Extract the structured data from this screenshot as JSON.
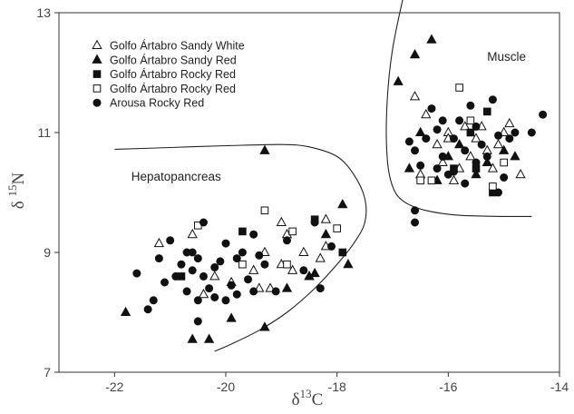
{
  "chart_data": {
    "type": "scatter",
    "title": "",
    "xlabel": "δ13C",
    "ylabel": "δ 15N",
    "xlim": [
      -23,
      -14
    ],
    "ylim": [
      7,
      13
    ],
    "xticks": [
      "-22",
      "-20",
      "-18",
      "-16",
      "-14"
    ],
    "yticks": [
      "7",
      "9",
      "11",
      "13"
    ],
    "grid": false,
    "legend_position": "top-left",
    "annotations": [
      {
        "text": "Hepatopancreas",
        "x": -21.7,
        "y": 10.2
      },
      {
        "text": "Muscle",
        "x": -15.3,
        "y": 12.2
      }
    ],
    "regions": [
      {
        "points": [
          [
            -22.0,
            10.72
          ],
          [
            -21.0,
            10.75
          ],
          [
            -20.0,
            10.78
          ],
          [
            -19.0,
            10.8
          ],
          [
            -18.5,
            10.76
          ],
          [
            -18.0,
            10.6
          ],
          [
            -17.7,
            10.3
          ],
          [
            -17.5,
            9.9
          ],
          [
            -17.5,
            9.5
          ],
          [
            -17.7,
            9.15
          ],
          [
            -18.0,
            8.8
          ],
          [
            -18.4,
            8.4
          ],
          [
            -18.9,
            8.0
          ],
          [
            -19.4,
            7.7
          ],
          [
            -19.9,
            7.47
          ],
          [
            -20.2,
            7.35
          ]
        ]
      },
      {
        "points": [
          [
            -16.8,
            13.3
          ],
          [
            -17.0,
            12.4
          ],
          [
            -17.1,
            11.5
          ],
          [
            -17.1,
            10.6
          ],
          [
            -17.0,
            10.1
          ],
          [
            -16.8,
            9.85
          ],
          [
            -16.4,
            9.7
          ],
          [
            -15.8,
            9.62
          ],
          [
            -15.0,
            9.6
          ],
          [
            -14.5,
            9.6
          ]
        ]
      }
    ],
    "series": [
      {
        "name": "Golfo Ártabro Sandy White",
        "marker": "triangle-open",
        "points": [
          [
            -21.2,
            9.15
          ],
          [
            -20.6,
            9.3
          ],
          [
            -20.4,
            8.3
          ],
          [
            -20.2,
            8.6
          ],
          [
            -19.9,
            8.5
          ],
          [
            -19.5,
            8.7
          ],
          [
            -19.3,
            9.0
          ],
          [
            -19.2,
            8.4
          ],
          [
            -19.0,
            8.8
          ],
          [
            -18.9,
            9.3
          ],
          [
            -18.8,
            8.7
          ],
          [
            -18.6,
            9.0
          ],
          [
            -18.5,
            8.6
          ],
          [
            -18.3,
            8.9
          ],
          [
            -18.2,
            9.1
          ],
          [
            -19.0,
            9.5
          ],
          [
            -18.2,
            9.55
          ],
          [
            -19.4,
            8.4
          ],
          [
            -16.6,
            11.6
          ],
          [
            -16.4,
            11.3
          ],
          [
            -16.2,
            10.8
          ],
          [
            -16.1,
            10.5
          ],
          [
            -16.0,
            11.0
          ],
          [
            -15.9,
            10.2
          ],
          [
            -15.7,
            11.1
          ],
          [
            -15.6,
            10.6
          ],
          [
            -15.5,
            10.9
          ],
          [
            -15.3,
            10.7
          ],
          [
            -15.1,
            10.8
          ],
          [
            -15.0,
            11.0
          ],
          [
            -14.9,
            11.15
          ],
          [
            -14.7,
            10.3
          ],
          [
            -16.5,
            10.3
          ],
          [
            -15.8,
            10.4
          ],
          [
            -16.0,
            10.9
          ],
          [
            -15.4,
            11.1
          ],
          [
            -15.2,
            10.4
          ]
        ]
      },
      {
        "name": "Golfo Ártabro Sandy Red",
        "marker": "triangle-filled",
        "points": [
          [
            -21.8,
            8.0
          ],
          [
            -20.6,
            7.55
          ],
          [
            -20.3,
            7.55
          ],
          [
            -19.9,
            7.9
          ],
          [
            -19.3,
            7.75
          ],
          [
            -19.3,
            10.7
          ],
          [
            -18.9,
            8.4
          ],
          [
            -18.5,
            8.6
          ],
          [
            -18.2,
            9.3
          ],
          [
            -17.9,
            9.8
          ],
          [
            -17.8,
            8.8
          ],
          [
            -18.4,
            8.65
          ],
          [
            -16.9,
            11.85
          ],
          [
            -16.6,
            12.3
          ],
          [
            -16.3,
            12.55
          ],
          [
            -16.5,
            11.0
          ],
          [
            -16.0,
            10.6
          ],
          [
            -15.8,
            10.8
          ],
          [
            -15.5,
            10.3
          ],
          [
            -15.3,
            10.5
          ],
          [
            -15.0,
            10.7
          ],
          [
            -14.8,
            10.6
          ],
          [
            -16.7,
            10.4
          ],
          [
            -16.2,
            10.2
          ]
        ]
      },
      {
        "name": "Golfo Ártabro Rocky Red",
        "marker": "square-filled",
        "points": [
          [
            -19.7,
            9.35
          ],
          [
            -18.4,
            9.55
          ],
          [
            -17.9,
            9.0
          ],
          [
            -20.8,
            8.6
          ],
          [
            -15.3,
            11.35
          ],
          [
            -15.6,
            11.0
          ],
          [
            -15.9,
            10.4
          ],
          [
            -15.2,
            10.0
          ],
          [
            -15.5,
            10.4
          ]
        ]
      },
      {
        "name": "Golfo Ártabro Rocky Red",
        "marker": "square-open",
        "points": [
          [
            -20.5,
            9.45
          ],
          [
            -19.3,
            9.7
          ],
          [
            -19.7,
            8.8
          ],
          [
            -18.9,
            8.8
          ],
          [
            -18.8,
            9.35
          ],
          [
            -18.0,
            9.4
          ],
          [
            -16.5,
            10.2
          ],
          [
            -16.3,
            10.2
          ],
          [
            -15.8,
            11.75
          ],
          [
            -15.6,
            11.2
          ],
          [
            -15.0,
            10.5
          ],
          [
            -15.2,
            10.1
          ]
        ]
      },
      {
        "name": "Arousa Rocky Red",
        "marker": "circle-filled",
        "points": [
          [
            -21.6,
            8.65
          ],
          [
            -21.3,
            8.2
          ],
          [
            -21.2,
            8.9
          ],
          [
            -21.1,
            8.5
          ],
          [
            -21.0,
            9.2
          ],
          [
            -20.9,
            8.6
          ],
          [
            -20.8,
            8.8
          ],
          [
            -20.7,
            9.0
          ],
          [
            -20.7,
            8.35
          ],
          [
            -20.6,
            8.7
          ],
          [
            -20.6,
            9.0
          ],
          [
            -20.5,
            8.9
          ],
          [
            -20.5,
            8.2
          ],
          [
            -20.4,
            8.6
          ],
          [
            -20.4,
            9.5
          ],
          [
            -20.3,
            8.4
          ],
          [
            -20.2,
            8.75
          ],
          [
            -20.2,
            8.25
          ],
          [
            -20.1,
            8.85
          ],
          [
            -20.0,
            9.15
          ],
          [
            -19.9,
            8.45
          ],
          [
            -19.8,
            8.9
          ],
          [
            -19.8,
            8.3
          ],
          [
            -19.7,
            9.0
          ],
          [
            -19.6,
            8.55
          ],
          [
            -19.5,
            9.3
          ],
          [
            -19.4,
            8.95
          ],
          [
            -19.3,
            8.8
          ],
          [
            -19.1,
            8.35
          ],
          [
            -18.9,
            9.2
          ],
          [
            -18.6,
            8.7
          ],
          [
            -18.4,
            9.5
          ],
          [
            -18.3,
            8.4
          ],
          [
            -18.1,
            9.1
          ],
          [
            -20.5,
            7.85
          ],
          [
            -20.0,
            8.2
          ],
          [
            -19.5,
            8.35
          ],
          [
            -21.4,
            8.05
          ],
          [
            -16.6,
            10.7
          ],
          [
            -16.6,
            9.5
          ],
          [
            -16.5,
            10.45
          ],
          [
            -16.4,
            10.9
          ],
          [
            -16.3,
            11.4
          ],
          [
            -16.2,
            11.05
          ],
          [
            -16.1,
            11.2
          ],
          [
            -16.1,
            10.6
          ],
          [
            -16.0,
            10.3
          ],
          [
            -15.9,
            10.9
          ],
          [
            -15.8,
            11.2
          ],
          [
            -15.7,
            10.7
          ],
          [
            -15.6,
            11.45
          ],
          [
            -15.5,
            10.5
          ],
          [
            -15.5,
            11.1
          ],
          [
            -15.4,
            10.8
          ],
          [
            -15.3,
            10.6
          ],
          [
            -15.2,
            11.55
          ],
          [
            -15.1,
            10.95
          ],
          [
            -15.0,
            10.25
          ],
          [
            -14.9,
            10.9
          ],
          [
            -14.8,
            11.0
          ],
          [
            -14.5,
            11.0
          ],
          [
            -14.3,
            11.3
          ],
          [
            -15.7,
            10.15
          ],
          [
            -15.9,
            10.35
          ],
          [
            -16.7,
            10.85
          ],
          [
            -16.2,
            10.4
          ],
          [
            -15.1,
            10.0
          ],
          [
            -16.6,
            9.7
          ]
        ]
      }
    ]
  }
}
